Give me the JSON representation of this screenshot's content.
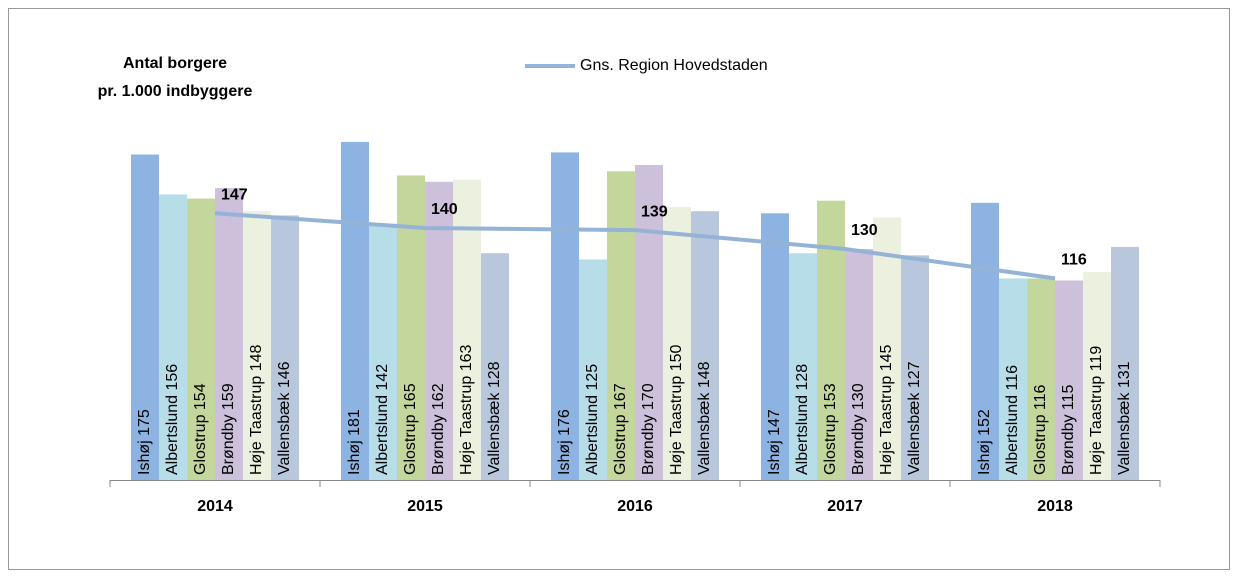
{
  "chart_data": {
    "type": "bar",
    "y_label": [
      "Antal borgere",
      "pr. 1.000 indbyggere"
    ],
    "categories": [
      "2014",
      "2015",
      "2016",
      "2017",
      "2018"
    ],
    "ylim": [
      20,
      200
    ],
    "legend": "top",
    "series": [
      {
        "color": "#8db3e2",
        "values": [
          175,
          181,
          176,
          147,
          152
        ],
        "value_labels": [
          "Ishøj 175",
          "Ishøj 181",
          "Ishøj 176",
          "Ishøj 147",
          "Ishøj 152"
        ]
      },
      {
        "color": "#b7dde8",
        "values": [
          156,
          142,
          125,
          128,
          116
        ],
        "value_labels": [
          "Albertslund 156",
          "Albertslund 142",
          "Albertslund 125",
          "Albertslund 128",
          "Albertslund 116"
        ]
      },
      {
        "color": "#c3d69b",
        "values": [
          154,
          165,
          167,
          153,
          116
        ],
        "value_labels": [
          "Glostrup 154",
          "Glostrup 165",
          "Glostrup 167",
          "Glostrup 153",
          "Glostrup 116"
        ]
      },
      {
        "color": "#ccc0da",
        "values": [
          159,
          162,
          170,
          130,
          115
        ],
        "value_labels": [
          "Brøndby 159",
          "Brøndby 162",
          "Brøndby 170",
          "Brøndby 130",
          "Brøndby 115"
        ]
      },
      {
        "color": "#ebf1de",
        "values": [
          148,
          163,
          150,
          145,
          119
        ],
        "value_labels": [
          "Høje Taastrup 148",
          "Høje Taastrup 163",
          "Høje Taastrup 150",
          "Høje Taastrup 145",
          "Høje Taastrup 119"
        ]
      },
      {
        "color": "#b9c7dd",
        "values": [
          146,
          128,
          148,
          127,
          131
        ],
        "value_labels": [
          "Vallensbæk 146",
          "Vallensbæk 128",
          "Vallensbæk 148",
          "Vallensbæk 127",
          "Vallensbæk 131"
        ]
      },
      {
        "type": "line",
        "name": "Gns. Region Hovedstaden",
        "color": "#95b3d7",
        "values": [
          147,
          140,
          139,
          130,
          116
        ]
      }
    ]
  }
}
